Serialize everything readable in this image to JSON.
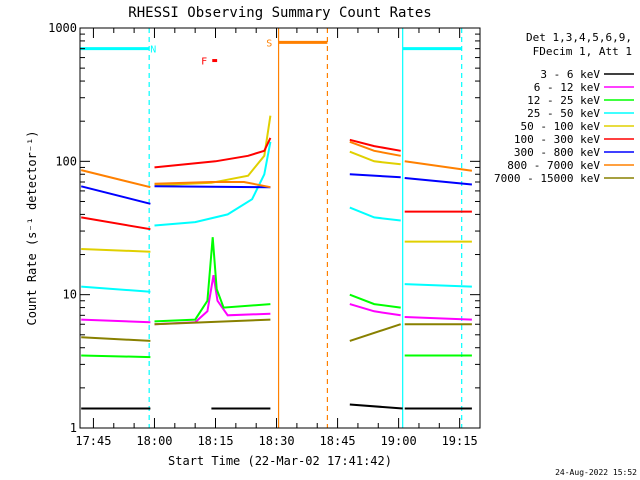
{
  "chart_data": {
    "type": "line",
    "title": "RHESSI Observing Summary Count Rates",
    "xlabel": "Start Time (22-Mar-02 17:41:42)",
    "ylabel": "Count Rate (s⁻¹ detector⁻¹)",
    "yscale": "log",
    "ylim": [
      1,
      1000
    ],
    "xlim_minutes": [
      1061.7,
      1160
    ],
    "x_ticks": [
      {
        "label": "17:45",
        "minute": 1065
      },
      {
        "label": "18:00",
        "minute": 1080
      },
      {
        "label": "18:15",
        "minute": 1095
      },
      {
        "label": "18:30",
        "minute": 1110
      },
      {
        "label": "18:45",
        "minute": 1125
      },
      {
        "label": "19:00",
        "minute": 1140
      },
      {
        "label": "19:15",
        "minute": 1155
      }
    ],
    "y_ticks": [
      {
        "label": "1",
        "value": 1
      },
      {
        "label": "10",
        "value": 10
      },
      {
        "label": "100",
        "value": 100
      },
      {
        "label": "1000",
        "value": 1000
      }
    ],
    "legend_header": [
      "Det 1,3,4,5,6,9,",
      "FDecim 1, Att 1"
    ],
    "series": [
      {
        "name": "3 - 6 keV",
        "color": "#000000",
        "segments": [
          [
            [
              1062,
              1.4
            ],
            [
              1079,
              1.4
            ]
          ],
          [
            [
              1094,
              1.4
            ],
            [
              1108.5,
              1.4
            ]
          ],
          [
            [
              1128,
              1.5
            ],
            [
              1141,
              1.4
            ]
          ],
          [
            [
              1141.5,
              1.4
            ],
            [
              1158,
              1.4
            ]
          ]
        ]
      },
      {
        "name": "6 - 12 keV",
        "color": "#ff00ff",
        "segments": [
          [
            [
              1062,
              6.5
            ],
            [
              1079,
              6.2
            ]
          ],
          [
            [
              1080,
              6.0
            ],
            [
              1090,
              6.2
            ],
            [
              1093,
              7.5
            ],
            [
              1094.5,
              14
            ],
            [
              1095.5,
              9
            ],
            [
              1098,
              7
            ],
            [
              1108.5,
              7.2
            ]
          ],
          [
            [
              1128,
              8.5
            ],
            [
              1134,
              7.5
            ],
            [
              1140.5,
              7.0
            ]
          ],
          [
            [
              1141.5,
              6.8
            ],
            [
              1158,
              6.5
            ]
          ]
        ]
      },
      {
        "name": "12 - 25 keV",
        "color": "#00ff00",
        "segments": [
          [
            [
              1062,
              3.5
            ],
            [
              1079,
              3.4
            ]
          ],
          [
            [
              1080,
              6.3
            ],
            [
              1090,
              6.5
            ],
            [
              1093,
              9
            ],
            [
              1094.3,
              27
            ],
            [
              1095.3,
              11
            ],
            [
              1097,
              8
            ],
            [
              1108.5,
              8.5
            ]
          ],
          [
            [
              1128,
              10
            ],
            [
              1134,
              8.5
            ],
            [
              1140.5,
              8.0
            ]
          ],
          [
            [
              1141.5,
              3.5
            ],
            [
              1158,
              3.5
            ]
          ]
        ]
      },
      {
        "name": "25 - 50 keV",
        "color": "#00ffff",
        "segments": [
          [
            [
              1062,
              11.5
            ],
            [
              1079,
              10.5
            ]
          ],
          [
            [
              1080,
              33
            ],
            [
              1090,
              35
            ],
            [
              1098,
              40
            ],
            [
              1104,
              52
            ],
            [
              1107,
              80
            ],
            [
              1108.5,
              140
            ]
          ],
          [
            [
              1128,
              45
            ],
            [
              1134,
              38
            ],
            [
              1140.5,
              36
            ]
          ],
          [
            [
              1141.5,
              12
            ],
            [
              1158,
              11.5
            ]
          ]
        ]
      },
      {
        "name": "50 - 100 keV",
        "color": "#e0d000",
        "segments": [
          [
            [
              1062,
              22
            ],
            [
              1079,
              21
            ]
          ],
          [
            [
              1080,
              66
            ],
            [
              1094,
              69
            ],
            [
              1103,
              78
            ],
            [
              1107,
              110
            ],
            [
              1108.5,
              220
            ]
          ],
          [
            [
              1128,
              118
            ],
            [
              1134,
              100
            ],
            [
              1140.5,
              95
            ]
          ],
          [
            [
              1141.5,
              25
            ],
            [
              1158,
              25
            ]
          ]
        ]
      },
      {
        "name": "100 - 300 keV",
        "color": "#ff0000",
        "segments": [
          [
            [
              1062,
              38
            ],
            [
              1079,
              31
            ]
          ],
          [
            [
              1080,
              90
            ],
            [
              1095,
              100
            ],
            [
              1103,
              110
            ],
            [
              1107,
              120
            ],
            [
              1108.5,
              150
            ]
          ],
          [
            [
              1128,
              145
            ],
            [
              1134,
              130
            ],
            [
              1140.5,
              120
            ]
          ],
          [
            [
              1141.5,
              42
            ],
            [
              1158,
              42
            ]
          ]
        ]
      },
      {
        "name": "300 - 800 keV",
        "color": "#0000ff",
        "segments": [
          [
            [
              1062,
              65
            ],
            [
              1079,
              48
            ]
          ],
          [
            [
              1080,
              65
            ],
            [
              1108.5,
              64
            ]
          ],
          [
            [
              1128,
              80
            ],
            [
              1140.5,
              76
            ]
          ],
          [
            [
              1141.5,
              75
            ],
            [
              1158,
              67
            ]
          ]
        ]
      },
      {
        "name": "800 - 7000 keV",
        "color": "#ff8000",
        "segments": [
          [
            [
              1062,
              86
            ],
            [
              1079,
              64
            ]
          ],
          [
            [
              1080,
              68
            ],
            [
              1094,
              70
            ],
            [
              1102,
              70
            ],
            [
              1108.5,
              64
            ]
          ],
          [
            [
              1128,
              140
            ],
            [
              1134,
              120
            ],
            [
              1140.5,
              110
            ]
          ],
          [
            [
              1141.5,
              100
            ],
            [
              1158,
              85
            ]
          ]
        ]
      },
      {
        "name": "7000 - 15000 keV",
        "color": "#888000",
        "segments": [
          [
            [
              1062,
              4.8
            ],
            [
              1079,
              4.5
            ]
          ],
          [
            [
              1080,
              6.0
            ],
            [
              1108.5,
              6.5
            ]
          ],
          [
            [
              1128,
              4.5
            ],
            [
              1140.5,
              6.0
            ]
          ],
          [
            [
              1141.5,
              6.0
            ],
            [
              1158,
              6.0
            ]
          ]
        ]
      }
    ],
    "flags": [
      {
        "label": "N",
        "color": "#00ffff",
        "bar_value": 700,
        "spans_minutes": [
          [
            1061.7,
            1078.7
          ],
          [
            1141,
            1155.5
          ]
        ],
        "label_minute": 1079.7
      },
      {
        "label": "S",
        "color": "#ff8000",
        "bar_value": 780,
        "spans_minutes": [
          [
            1110.5,
            1122.5
          ]
        ],
        "label_minute": 1108.2
      },
      {
        "label": "F",
        "color": "#ff0000",
        "bar_value": 570,
        "spans_minutes": [
          [
            1094.2,
            1095.4
          ]
        ],
        "label_minute": 1092.2
      }
    ],
    "vertical_lines": [
      {
        "minute": 1078.7,
        "color": "#00ffff",
        "style": "dashed"
      },
      {
        "minute": 1141,
        "color": "#00ffff",
        "style": "solid"
      },
      {
        "minute": 1155.5,
        "color": "#00ffff",
        "style": "dashed"
      },
      {
        "minute": 1110.5,
        "color": "#ff8000",
        "style": "solid"
      },
      {
        "minute": 1122.5,
        "color": "#ff8000",
        "style": "dashed"
      }
    ],
    "grid": false,
    "legend_position": "right"
  },
  "footer_date": "24-Aug-2022 15:52"
}
